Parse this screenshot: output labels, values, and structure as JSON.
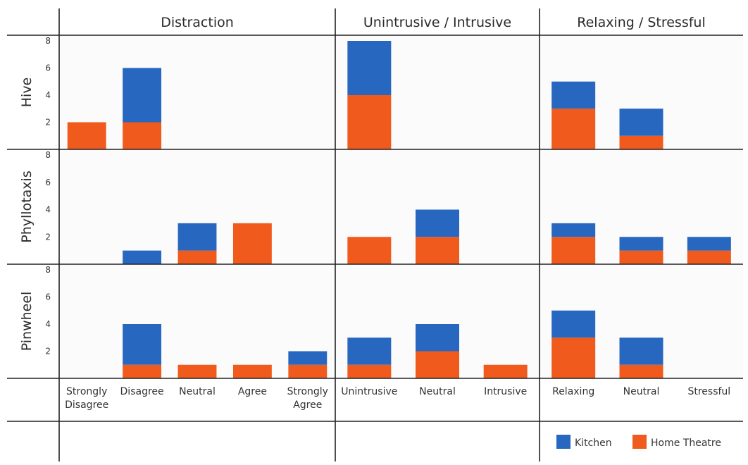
{
  "chart_data": {
    "type": "bar",
    "stacked": true,
    "columns": [
      {
        "title": "Distraction",
        "categories": [
          "Strongly Disagree",
          "Disagree",
          "Neutral",
          "Agree",
          "Strongly Agree"
        ]
      },
      {
        "title": "Unintrusive / Intrusive",
        "categories": [
          "Unintrusive",
          "Neutral",
          "Intrusive"
        ]
      },
      {
        "title": "Relaxing / Stressful",
        "categories": [
          "Relaxing",
          "Neutral",
          "Stressful"
        ]
      }
    ],
    "rows": [
      "Hive",
      "Phyllotaxis",
      "Pinwheel"
    ],
    "y_ticks": [
      2,
      4,
      6,
      8
    ],
    "ylim": [
      0,
      8
    ],
    "series": [
      {
        "name": "Home Theatre",
        "color": "#f05a1c"
      },
      {
        "name": "Kitchen",
        "color": "#2767c0"
      }
    ],
    "data": {
      "Hive": [
        {
          "Home Theatre": [
            2,
            2,
            0,
            0,
            0
          ],
          "Kitchen": [
            0,
            4,
            0,
            0,
            0
          ]
        },
        {
          "Home Theatre": [
            4,
            0,
            0
          ],
          "Kitchen": [
            4,
            0,
            0
          ]
        },
        {
          "Home Theatre": [
            3,
            1,
            0
          ],
          "Kitchen": [
            2,
            2,
            0
          ]
        }
      ],
      "Phyllotaxis": [
        {
          "Home Theatre": [
            0,
            0,
            1,
            3,
            0
          ],
          "Kitchen": [
            0,
            1,
            2,
            0,
            0
          ]
        },
        {
          "Home Theatre": [
            2,
            2,
            0
          ],
          "Kitchen": [
            0,
            2,
            0
          ]
        },
        {
          "Home Theatre": [
            2,
            1,
            1
          ],
          "Kitchen": [
            1,
            1,
            1
          ]
        }
      ],
      "Pinwheel": [
        {
          "Home Theatre": [
            0,
            1,
            1,
            1,
            1
          ],
          "Kitchen": [
            0,
            3,
            0,
            0,
            1
          ]
        },
        {
          "Home Theatre": [
            1,
            2,
            1
          ],
          "Kitchen": [
            2,
            2,
            0
          ]
        },
        {
          "Home Theatre": [
            3,
            1,
            0
          ],
          "Kitchen": [
            2,
            2,
            0
          ]
        }
      ]
    },
    "legend": {
      "placement": "bottom-right",
      "entries": [
        "Kitchen",
        "Home Theatre"
      ]
    }
  }
}
